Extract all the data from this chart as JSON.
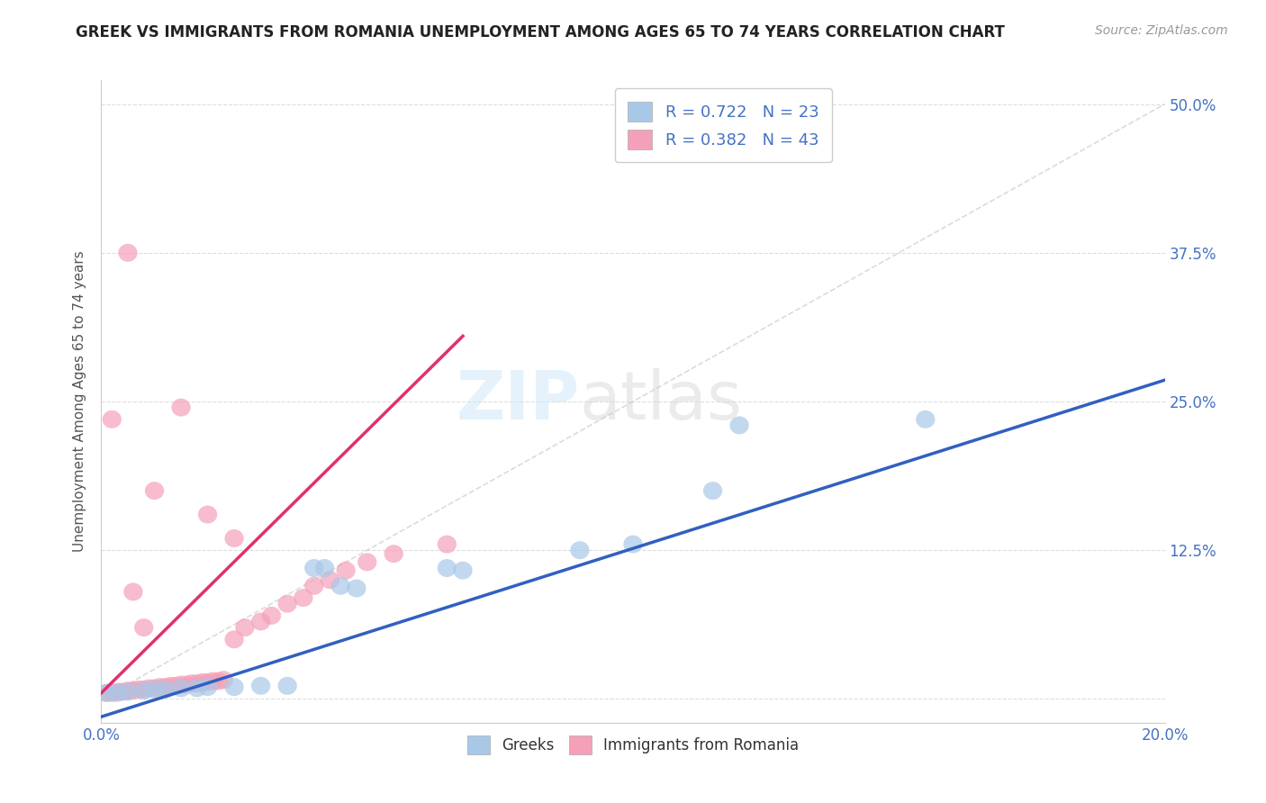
{
  "title": "GREEK VS IMMIGRANTS FROM ROMANIA UNEMPLOYMENT AMONG AGES 65 TO 74 YEARS CORRELATION CHART",
  "source": "Source: ZipAtlas.com",
  "ylabel": "Unemployment Among Ages 65 to 74 years",
  "xlim": [
    0.0,
    0.2
  ],
  "ylim": [
    -0.02,
    0.52
  ],
  "xticks": [
    0.0,
    0.02,
    0.04,
    0.06,
    0.08,
    0.1,
    0.12,
    0.14,
    0.16,
    0.18,
    0.2
  ],
  "yticks_right": [
    0.0,
    0.125,
    0.25,
    0.375,
    0.5
  ],
  "yticklabels_right": [
    "",
    "12.5%",
    "25.0%",
    "37.5%",
    "50.0%"
  ],
  "legend_blue_R": "R = 0.722",
  "legend_blue_N": "N = 23",
  "legend_pink_R": "R = 0.382",
  "legend_pink_N": "N = 43",
  "blue_color": "#a8c8e8",
  "pink_color": "#f4a0b8",
  "blue_line_color": "#3060c0",
  "pink_line_color": "#e03070",
  "ref_line_color": "#cccccc",
  "text_color": "#4472c4",
  "title_color": "#222222",
  "background_color": "#ffffff",
  "blue_points": [
    [
      0.001,
      0.005
    ],
    [
      0.003,
      0.005
    ],
    [
      0.005,
      0.006
    ],
    [
      0.008,
      0.007
    ],
    [
      0.01,
      0.008
    ],
    [
      0.012,
      0.008
    ],
    [
      0.015,
      0.009
    ],
    [
      0.018,
      0.009
    ],
    [
      0.02,
      0.01
    ],
    [
      0.025,
      0.01
    ],
    [
      0.03,
      0.011
    ],
    [
      0.035,
      0.011
    ],
    [
      0.04,
      0.11
    ],
    [
      0.042,
      0.11
    ],
    [
      0.045,
      0.095
    ],
    [
      0.048,
      0.093
    ],
    [
      0.065,
      0.11
    ],
    [
      0.068,
      0.108
    ],
    [
      0.09,
      0.125
    ],
    [
      0.1,
      0.13
    ],
    [
      0.115,
      0.175
    ],
    [
      0.12,
      0.23
    ],
    [
      0.155,
      0.235
    ]
  ],
  "pink_points": [
    [
      0.001,
      0.005
    ],
    [
      0.002,
      0.005
    ],
    [
      0.003,
      0.006
    ],
    [
      0.004,
      0.006
    ],
    [
      0.005,
      0.007
    ],
    [
      0.006,
      0.007
    ],
    [
      0.007,
      0.008
    ],
    [
      0.008,
      0.008
    ],
    [
      0.009,
      0.009
    ],
    [
      0.01,
      0.009
    ],
    [
      0.011,
      0.01
    ],
    [
      0.012,
      0.01
    ],
    [
      0.013,
      0.011
    ],
    [
      0.014,
      0.011
    ],
    [
      0.015,
      0.012
    ],
    [
      0.016,
      0.012
    ],
    [
      0.017,
      0.013
    ],
    [
      0.018,
      0.013
    ],
    [
      0.019,
      0.014
    ],
    [
      0.02,
      0.014
    ],
    [
      0.021,
      0.015
    ],
    [
      0.022,
      0.015
    ],
    [
      0.023,
      0.016
    ],
    [
      0.025,
      0.05
    ],
    [
      0.027,
      0.06
    ],
    [
      0.03,
      0.065
    ],
    [
      0.032,
      0.07
    ],
    [
      0.035,
      0.08
    ],
    [
      0.038,
      0.085
    ],
    [
      0.04,
      0.095
    ],
    [
      0.043,
      0.1
    ],
    [
      0.046,
      0.108
    ],
    [
      0.05,
      0.115
    ],
    [
      0.055,
      0.122
    ],
    [
      0.065,
      0.13
    ],
    [
      0.01,
      0.175
    ],
    [
      0.015,
      0.245
    ],
    [
      0.005,
      0.375
    ],
    [
      0.02,
      0.155
    ],
    [
      0.025,
      0.135
    ],
    [
      0.002,
      0.235
    ],
    [
      0.006,
      0.09
    ],
    [
      0.008,
      0.06
    ]
  ],
  "blue_line_x": [
    0.0,
    0.2
  ],
  "blue_line_y": [
    -0.015,
    0.268
  ],
  "pink_line_x": [
    0.0,
    0.068
  ],
  "pink_line_y": [
    0.005,
    0.305
  ],
  "ref_line_x": [
    0.0,
    0.2
  ],
  "ref_line_y": [
    0.0,
    0.5
  ]
}
